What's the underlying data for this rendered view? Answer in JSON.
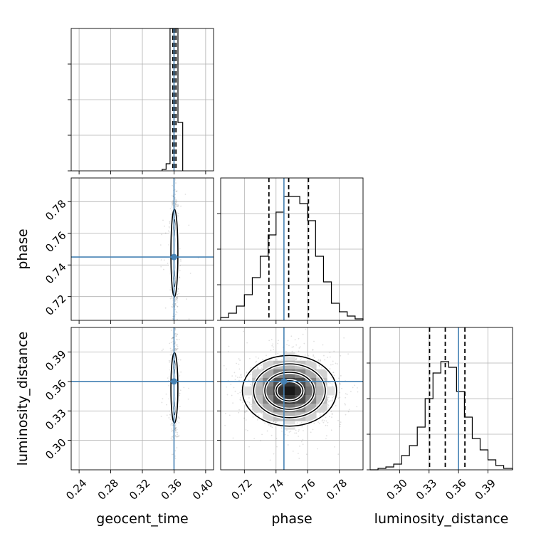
{
  "chart_data": {
    "type": "corner",
    "parameters": [
      "geocent_time",
      "phase",
      "luminosity_distance"
    ],
    "truths": {
      "geocent_time": 0.36,
      "phase": 0.745,
      "luminosity_distance": 0.36
    },
    "colors": {
      "truth": "#4682b4",
      "samples": "#000000",
      "grid": "#b0b0b0"
    },
    "panels": {
      "geocent_time": {
        "range": [
          0.23,
          0.41
        ],
        "ticks": [
          0.24,
          0.28,
          0.32,
          0.36,
          0.4
        ],
        "tick_labels": [
          "0.24",
          "0.28",
          "0.32",
          "0.36",
          "0.40"
        ],
        "quantiles": [
          0.3585,
          0.3605,
          0.3625
        ],
        "hist_bins": [
          0.345,
          0.35,
          0.355,
          0.36,
          0.365,
          0.371
        ],
        "hist_counts": [
          0.01,
          0.05,
          1.0,
          1.0,
          0.34
        ]
      },
      "phase": {
        "range": [
          0.705,
          0.795
        ],
        "ticks": [
          0.72,
          0.74,
          0.76,
          0.78
        ],
        "tick_labels": [
          "0.72",
          "0.74",
          "0.76",
          "0.78"
        ],
        "quantiles": [
          0.7355,
          0.748,
          0.7605
        ],
        "hist_bins": [
          0.705,
          0.71,
          0.715,
          0.72,
          0.725,
          0.73,
          0.735,
          0.74,
          0.745,
          0.75,
          0.755,
          0.76,
          0.765,
          0.77,
          0.775,
          0.78,
          0.785,
          0.79,
          0.795
        ],
        "hist_counts": [
          0.02,
          0.05,
          0.1,
          0.18,
          0.3,
          0.45,
          0.6,
          0.76,
          0.87,
          0.87,
          0.82,
          0.7,
          0.45,
          0.27,
          0.12,
          0.06,
          0.03,
          0.01
        ]
      },
      "luminosity_distance": {
        "range": [
          0.27,
          0.415
        ],
        "ticks": [
          0.3,
          0.33,
          0.36,
          0.39
        ],
        "tick_labels": [
          "0.30",
          "0.33",
          "0.36",
          "0.39"
        ],
        "quantiles": [
          0.3305,
          0.3465,
          0.3665
        ],
        "hist_bins": [
          0.27,
          0.278,
          0.286,
          0.294,
          0.302,
          0.31,
          0.318,
          0.326,
          0.334,
          0.342,
          0.35,
          0.358,
          0.366,
          0.374,
          0.382,
          0.39,
          0.398,
          0.406,
          0.415
        ],
        "hist_counts": [
          0.0,
          0.01,
          0.02,
          0.04,
          0.1,
          0.17,
          0.3,
          0.5,
          0.68,
          0.76,
          0.72,
          0.55,
          0.37,
          0.22,
          0.14,
          0.07,
          0.03,
          0.01
        ]
      }
    },
    "joint_centers": {
      "geocent_time_phase": [
        0.3605,
        0.7475
      ],
      "geocent_time_luminosity_distance": [
        0.3605,
        0.3535
      ],
      "phase_luminosity_distance": [
        0.7485,
        0.3505
      ]
    },
    "joint_sigmas": {
      "geocent_time": 0.002,
      "phase": 0.0135,
      "luminosity_distance": 0.0175
    },
    "grid": true
  },
  "labels": {
    "x_geocent_time": "geocent_time",
    "x_phase": "phase",
    "x_luminosity_distance": "luminosity_distance",
    "y_phase": "phase",
    "y_luminosity_distance": "luminosity_distance"
  }
}
